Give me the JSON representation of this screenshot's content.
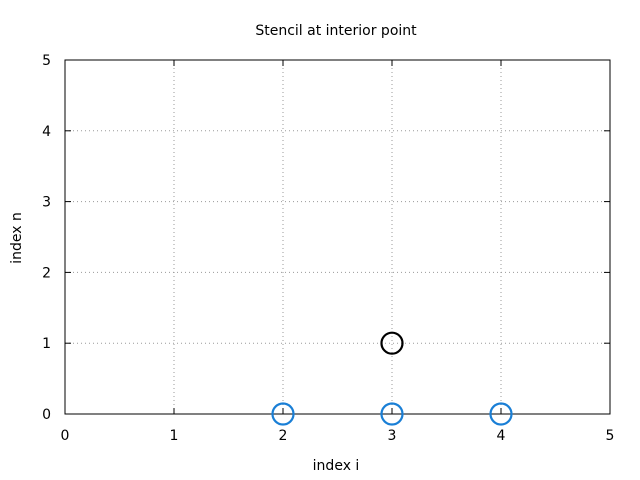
{
  "chart_data": {
    "type": "scatter",
    "title": "Stencil at interior point",
    "xlabel": "index i",
    "ylabel": "index n",
    "xlim": [
      0,
      5
    ],
    "ylim": [
      0,
      5
    ],
    "xticks": [
      "0",
      "1",
      "2",
      "3",
      "4",
      "5"
    ],
    "yticks": [
      "0",
      "1",
      "2",
      "3",
      "4",
      "5"
    ],
    "grid": true,
    "series": [
      {
        "color": "#000000",
        "marker": "open-circle",
        "points": [
          {
            "x": 3,
            "y": 1
          }
        ]
      },
      {
        "color": "#1a7fd6",
        "marker": "open-circle",
        "points": [
          {
            "x": 2,
            "y": 0
          },
          {
            "x": 3,
            "y": 0
          },
          {
            "x": 4,
            "y": 0
          }
        ]
      }
    ]
  }
}
